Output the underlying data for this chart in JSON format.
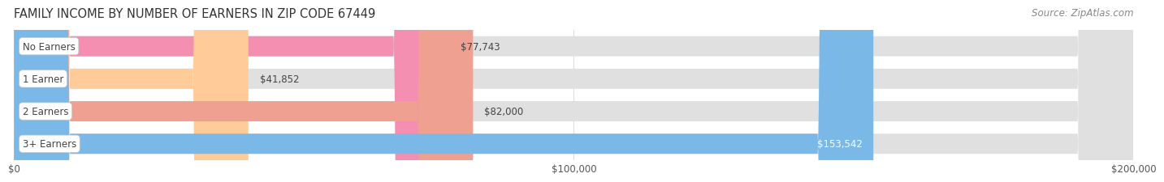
{
  "title": "FAMILY INCOME BY NUMBER OF EARNERS IN ZIP CODE 67449",
  "source": "Source: ZipAtlas.com",
  "categories": [
    "No Earners",
    "1 Earner",
    "2 Earners",
    "3+ Earners"
  ],
  "values": [
    77743,
    41852,
    82000,
    153542
  ],
  "bar_colors": [
    "#f48fb1",
    "#ffcc99",
    "#f0a090",
    "#7ab8e8"
  ],
  "label_colors": [
    "#333333",
    "#333333",
    "#333333",
    "#ffffff"
  ],
  "x_ticks": [
    0,
    100000,
    200000
  ],
  "x_tick_labels": [
    "$0",
    "$100,000",
    "$200,000"
  ],
  "xlim": [
    0,
    200000
  ],
  "value_labels": [
    "$77,743",
    "$41,852",
    "$82,000",
    "$153,542"
  ],
  "bg_color": "#ffffff",
  "bar_bg_color": "#e0e0e0",
  "title_fontsize": 10.5,
  "source_fontsize": 8.5,
  "label_fontsize": 8.5,
  "value_fontsize": 8.5,
  "tick_fontsize": 8.5
}
